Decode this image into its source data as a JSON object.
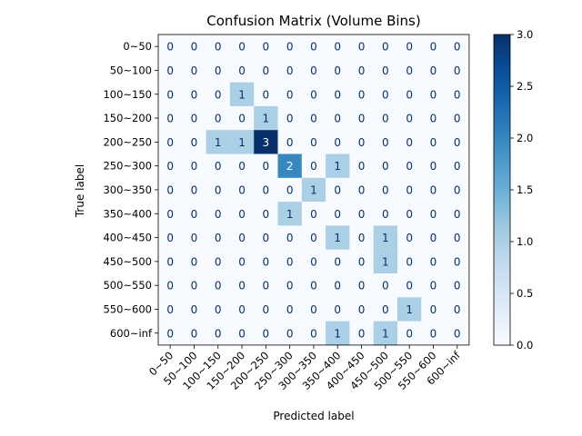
{
  "chart_data": {
    "type": "heatmap",
    "title": "Confusion Matrix (Volume Bins)",
    "xlabel": "Predicted label",
    "ylabel": "True label",
    "categories": [
      "0~50",
      "50~100",
      "100~150",
      "150~200",
      "200~250",
      "250~300",
      "300~350",
      "350~400",
      "400~450",
      "450~500",
      "500~550",
      "550~600",
      "600~inf"
    ],
    "matrix": [
      [
        0,
        0,
        0,
        0,
        0,
        0,
        0,
        0,
        0,
        0,
        0,
        0,
        0
      ],
      [
        0,
        0,
        0,
        0,
        0,
        0,
        0,
        0,
        0,
        0,
        0,
        0,
        0
      ],
      [
        0,
        0,
        0,
        1,
        0,
        0,
        0,
        0,
        0,
        0,
        0,
        0,
        0
      ],
      [
        0,
        0,
        0,
        0,
        1,
        0,
        0,
        0,
        0,
        0,
        0,
        0,
        0
      ],
      [
        0,
        0,
        1,
        1,
        3,
        0,
        0,
        0,
        0,
        0,
        0,
        0,
        0
      ],
      [
        0,
        0,
        0,
        0,
        0,
        2,
        0,
        1,
        0,
        0,
        0,
        0,
        0
      ],
      [
        0,
        0,
        0,
        0,
        0,
        0,
        1,
        0,
        0,
        0,
        0,
        0,
        0
      ],
      [
        0,
        0,
        0,
        0,
        0,
        1,
        0,
        0,
        0,
        0,
        0,
        0,
        0
      ],
      [
        0,
        0,
        0,
        0,
        0,
        0,
        0,
        1,
        0,
        1,
        0,
        0,
        0
      ],
      [
        0,
        0,
        0,
        0,
        0,
        0,
        0,
        0,
        0,
        1,
        0,
        0,
        0
      ],
      [
        0,
        0,
        0,
        0,
        0,
        0,
        0,
        0,
        0,
        0,
        0,
        0,
        0
      ],
      [
        0,
        0,
        0,
        0,
        0,
        0,
        0,
        0,
        0,
        0,
        1,
        0,
        0
      ],
      [
        0,
        0,
        0,
        0,
        0,
        0,
        0,
        1,
        0,
        1,
        0,
        0,
        0
      ]
    ],
    "colormap": "Blues",
    "vmin": 0,
    "vmax": 3,
    "colorbar_ticks": [
      "0.0",
      "0.5",
      "1.0",
      "1.5",
      "2.0",
      "2.5",
      "3.0"
    ],
    "colors": {
      "low": "#f7fbff",
      "mid": "#a8cfe6",
      "high2": "#2f7ebc",
      "high": "#08306b",
      "text_dark": "#08306b",
      "text_light": "#ffffff"
    }
  }
}
